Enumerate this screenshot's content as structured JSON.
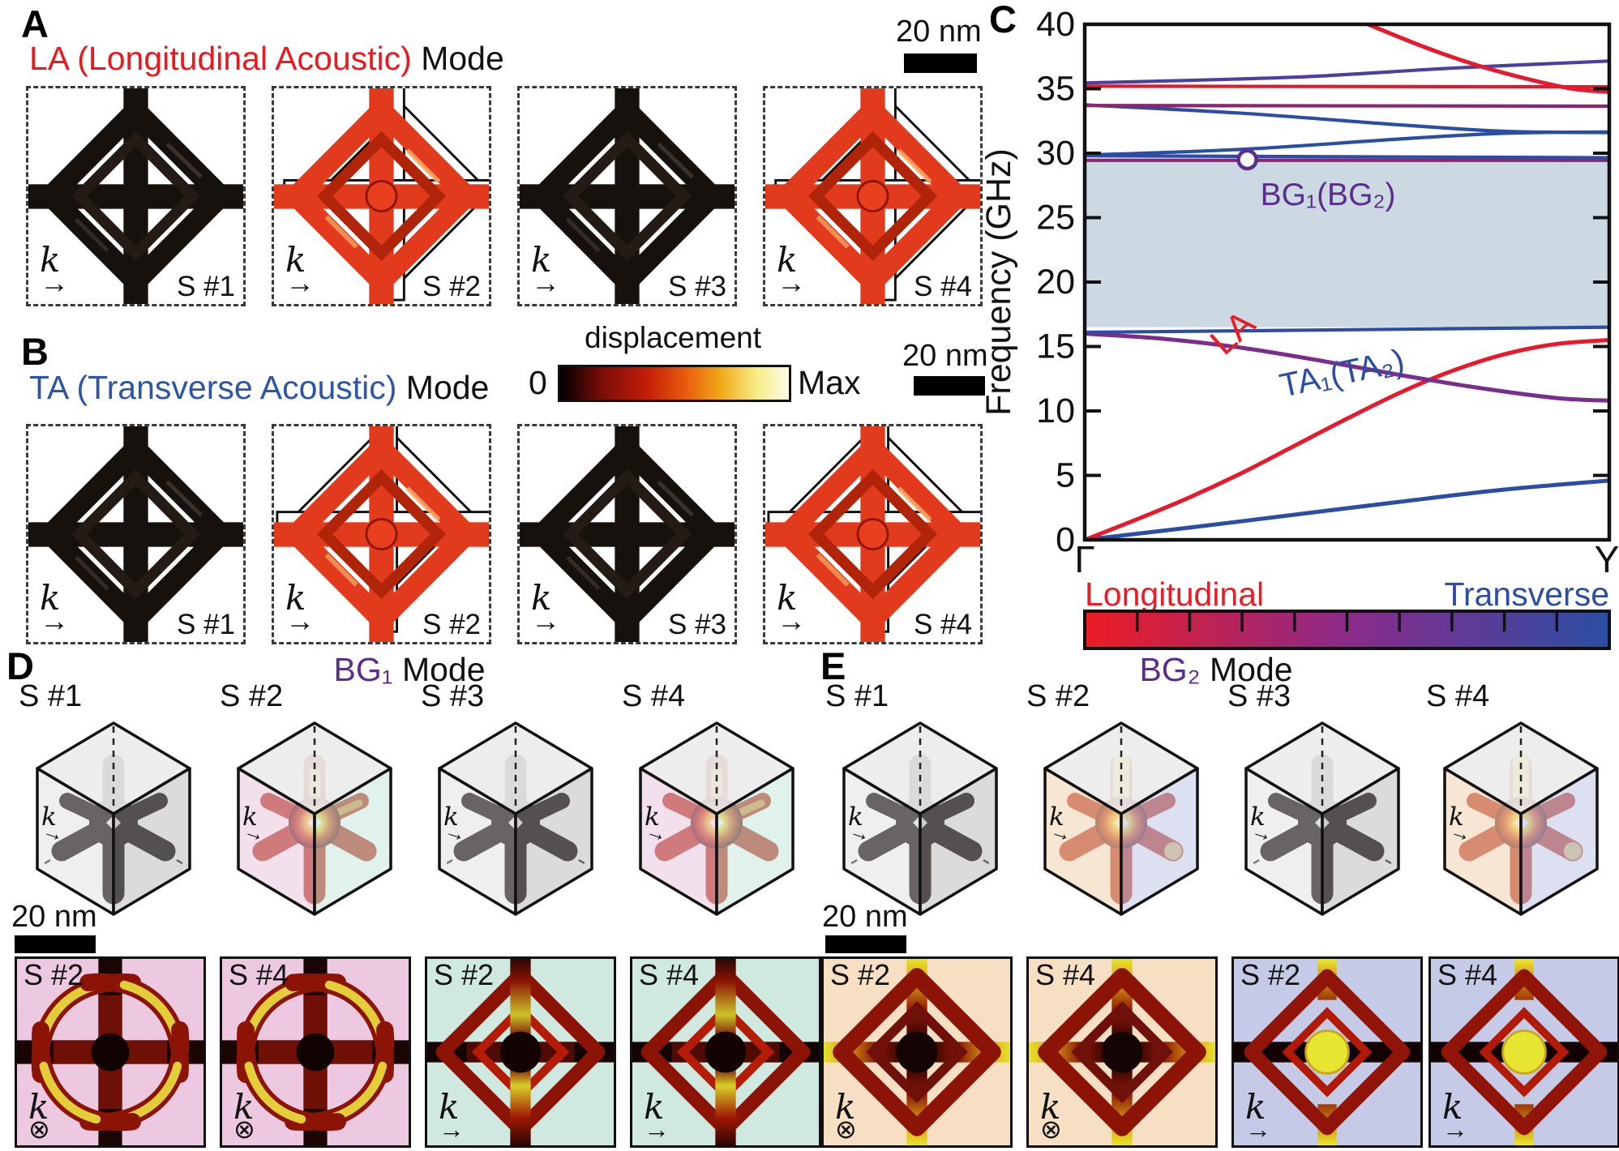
{
  "figure": {
    "panel_a": {
      "label": "A",
      "title_accent": "LA (Longitudinal Acoustic)",
      "title_rest": " Mode",
      "accent_color": "#e8191f",
      "scalebar_label": "20 nm",
      "k_label": "k",
      "k_arrow": "→",
      "cells": [
        {
          "label": "S #1",
          "state": "undeformed"
        },
        {
          "label": "S #2",
          "state": "deformed"
        },
        {
          "label": "S #3",
          "state": "undeformed"
        },
        {
          "label": "S #4",
          "state": "deformed"
        }
      ]
    },
    "panel_b": {
      "label": "B",
      "title_accent": "TA (Transverse Acoustic)",
      "title_rest": " Mode",
      "accent_color": "#2d55a8",
      "scalebar_label": "20 nm",
      "k_label": "k",
      "k_arrow": "→",
      "cells": [
        {
          "label": "S #1",
          "state": "undeformed"
        },
        {
          "label": "S #2",
          "state": "deformed"
        },
        {
          "label": "S #3",
          "state": "undeformed"
        },
        {
          "label": "S #4",
          "state": "deformed"
        }
      ]
    },
    "displacement_legend": {
      "title": "displacement",
      "min_label": "0",
      "max_label": "Max",
      "colormap": [
        "#000000",
        "#7a0d08",
        "#c41d07",
        "#e85c0c",
        "#f0a818",
        "#f6ec86",
        "#fdfbe8"
      ]
    },
    "panel_c": {
      "label": "C",
      "y_axis_label": "Frequency (GHz)",
      "x_start_label": "Γ",
      "x_end_label": "Y",
      "band_gap_label": "BG₁(BG₂)",
      "band_gap_fill": "#cdd9e2",
      "la_curve_label": "LA",
      "ta_curve_label": "TA₁(TA₂)",
      "legend_left": "Longitudinal",
      "legend_right": "Transverse",
      "legend_left_color": "#ed1c24",
      "legend_right_color": "#2b4ea4",
      "polarization_colormap": [
        "#ed1c24",
        "#8b2a8a",
        "#2b4ea4"
      ]
    },
    "panel_d": {
      "label": "D",
      "title_accent": "BG₁",
      "title_rest": " Mode",
      "accent_color": "#5b2d8e",
      "scalebar_label": "20 nm",
      "k_label": "k",
      "cubes": [
        {
          "label": "S #1",
          "state": "undeformed"
        },
        {
          "label": "S #2",
          "state": "excited"
        },
        {
          "label": "S #3",
          "state": "undeformed"
        },
        {
          "label": "S #4",
          "state": "excited"
        }
      ],
      "sections": [
        {
          "label": "S #2",
          "k_symbol": "⊗",
          "bg": "#ecc9e1"
        },
        {
          "label": "S #4",
          "k_symbol": "⊗",
          "bg": "#ecc9e1"
        },
        {
          "label": "S #2",
          "k_symbol": "→",
          "bg": "#cfe9e0"
        },
        {
          "label": "S #4",
          "k_symbol": "→",
          "bg": "#cfe9e0"
        }
      ]
    },
    "panel_e": {
      "label": "E",
      "title_accent": "BG₂",
      "title_rest": " Mode",
      "accent_color": "#5b2d8e",
      "scalebar_label": "20 nm",
      "k_label": "k",
      "cubes": [
        {
          "label": "S #1",
          "state": "undeformed"
        },
        {
          "label": "S #2",
          "state": "excited"
        },
        {
          "label": "S #3",
          "state": "undeformed"
        },
        {
          "label": "S #4",
          "state": "excited"
        }
      ],
      "sections": [
        {
          "label": "S #2",
          "k_symbol": "⊗",
          "bg": "#f6dfc2"
        },
        {
          "label": "S #4",
          "k_symbol": "⊗",
          "bg": "#f6dfc2"
        },
        {
          "label": "S #2",
          "k_symbol": "→",
          "bg": "#c5cbe7"
        },
        {
          "label": "S #4",
          "k_symbol": "→",
          "bg": "#c5cbe7"
        }
      ]
    }
  },
  "chart_data": {
    "type": "line",
    "ylabel": "Frequency (GHz)",
    "ylim": [
      0,
      40
    ],
    "yticks": [
      0,
      5,
      10,
      15,
      20,
      25,
      30,
      35,
      40
    ],
    "x_range": [
      "Γ",
      "Y"
    ],
    "grid": false,
    "band_gap": {
      "from_ghz": 16.5,
      "to_ghz": 29.4
    },
    "gap_marker": {
      "x": 0.31,
      "y_ghz": 29.5,
      "label": "BG₁(BG₂)"
    },
    "series": [
      {
        "name": "TA1(TA2) acoustic branch",
        "color": "#2b4ea4",
        "points": [
          [
            0,
            0
          ],
          [
            0.2,
            0.95
          ],
          [
            0.4,
            1.95
          ],
          [
            0.6,
            2.95
          ],
          [
            0.8,
            3.9
          ],
          [
            1,
            4.6
          ]
        ]
      },
      {
        "name": "LA acoustic branch",
        "color": "#e8192c",
        "points": [
          [
            0,
            0
          ],
          [
            0.1,
            1.6
          ],
          [
            0.2,
            3.3
          ],
          [
            0.3,
            5.2
          ],
          [
            0.4,
            7.3
          ],
          [
            0.5,
            9.4
          ],
          [
            0.6,
            11.4
          ],
          [
            0.7,
            13.1
          ],
          [
            0.8,
            14.4
          ],
          [
            0.9,
            15.2
          ],
          [
            1,
            15.5
          ]
        ]
      },
      {
        "name": "optical branch descending",
        "color": "#7a2d8c",
        "points": [
          [
            0,
            16.0
          ],
          [
            0.15,
            15.6
          ],
          [
            0.3,
            14.9
          ],
          [
            0.45,
            13.9
          ],
          [
            0.6,
            12.8
          ],
          [
            0.75,
            11.8
          ],
          [
            0.9,
            11.0
          ],
          [
            1,
            10.8
          ]
        ]
      },
      {
        "name": "flat branch at gap lower edge",
        "color": "#2b4ea4",
        "points": [
          [
            0,
            16.1
          ],
          [
            0.5,
            16.3
          ],
          [
            1,
            16.5
          ]
        ]
      },
      {
        "name": "flat branch at gap upper edge",
        "color": "#8c2470",
        "points": [
          [
            0,
            29.45
          ],
          [
            1,
            29.45
          ]
        ]
      },
      {
        "name": "flat blue branch 29.8",
        "color": "#2b4ea4",
        "points": [
          [
            0,
            29.8
          ],
          [
            1,
            29.65
          ]
        ]
      },
      {
        "name": "blue branch rising",
        "color": "#2b4ea4",
        "points": [
          [
            0,
            29.85
          ],
          [
            0.3,
            30.3
          ],
          [
            0.6,
            31.1
          ],
          [
            0.8,
            31.55
          ],
          [
            1,
            31.65
          ]
        ]
      },
      {
        "name": "blue branch descending",
        "color": "#2b4ea4",
        "points": [
          [
            0,
            33.75
          ],
          [
            0.3,
            33.1
          ],
          [
            0.6,
            32.2
          ],
          [
            0.8,
            31.7
          ],
          [
            1,
            31.6
          ]
        ]
      },
      {
        "name": "purple flat branch 33.7",
        "color": "#8c2470",
        "points": [
          [
            0,
            33.7
          ],
          [
            1,
            33.65
          ]
        ]
      },
      {
        "name": "red flat branch 35.2",
        "color": "#d41f30",
        "points": [
          [
            0,
            35.2
          ],
          [
            1,
            35.15
          ]
        ]
      },
      {
        "name": "blue-to-purple rising branch",
        "color": "#4b3fa0",
        "points": [
          [
            0,
            35.45
          ],
          [
            0.4,
            35.9
          ],
          [
            0.7,
            36.6
          ],
          [
            1,
            37.15
          ]
        ]
      },
      {
        "name": "red steep descending branch",
        "color": "#e8192c",
        "points": [
          [
            0.54,
            40
          ],
          [
            0.65,
            38.2
          ],
          [
            0.75,
            36.8
          ],
          [
            0.85,
            35.7
          ],
          [
            0.93,
            35.0
          ],
          [
            1,
            34.75
          ]
        ]
      }
    ]
  }
}
